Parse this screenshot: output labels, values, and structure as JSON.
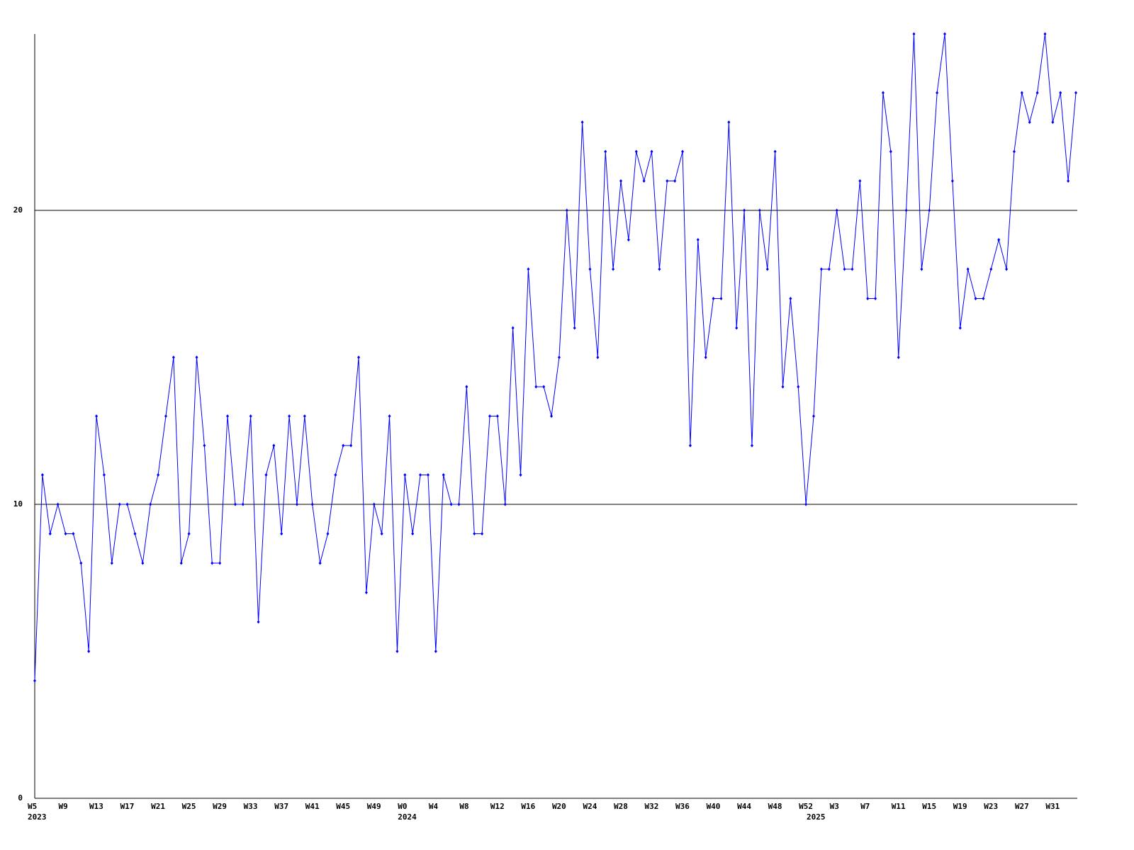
{
  "chart_data": {
    "type": "line",
    "categories": [
      "W5",
      null,
      null,
      null,
      "W9",
      null,
      null,
      null,
      "W13",
      null,
      null,
      null,
      "W17",
      null,
      null,
      null,
      "W21",
      null,
      null,
      null,
      "W25",
      null,
      null,
      null,
      "W29",
      null,
      null,
      null,
      "W33",
      null,
      null,
      null,
      "W37",
      null,
      null,
      null,
      "W41",
      null,
      null,
      null,
      "W45",
      null,
      null,
      null,
      "W49",
      null,
      null,
      null,
      "W0",
      null,
      null,
      null,
      "W4",
      null,
      null,
      null,
      "W8",
      null,
      null,
      null,
      "W12",
      null,
      null,
      null,
      "W16",
      null,
      null,
      null,
      "W20",
      null,
      null,
      null,
      "W24",
      null,
      null,
      null,
      "W28",
      null,
      null,
      null,
      "W32",
      null,
      null,
      null,
      "W36",
      null,
      null,
      null,
      "W40",
      null,
      null,
      null,
      "W44",
      null,
      null,
      null,
      "W48",
      null,
      null,
      null,
      "W52",
      null,
      null,
      null,
      "W3",
      null,
      null,
      null,
      "W7",
      null,
      null,
      null,
      "W11",
      null,
      null,
      null,
      "W15",
      null,
      null,
      null,
      "W19",
      null,
      null,
      null,
      "W23",
      null,
      null,
      null,
      "W27",
      null,
      null,
      null,
      "W31",
      null,
      null,
      null
    ],
    "category_years": [
      "2023",
      null,
      null,
      null,
      null,
      null,
      null,
      null,
      null,
      null,
      null,
      null,
      null,
      null,
      null,
      null,
      null,
      null,
      null,
      null,
      null,
      null,
      null,
      null,
      null,
      null,
      null,
      null,
      null,
      null,
      null,
      null,
      null,
      null,
      null,
      null,
      null,
      null,
      null,
      null,
      null,
      null,
      null,
      null,
      null,
      null,
      null,
      null,
      "2024",
      null,
      null,
      null,
      null,
      null,
      null,
      null,
      null,
      null,
      null,
      null,
      null,
      null,
      null,
      null,
      null,
      null,
      null,
      null,
      null,
      null,
      null,
      null,
      null,
      null,
      null,
      null,
      null,
      null,
      null,
      null,
      null,
      null,
      null,
      null,
      null,
      null,
      null,
      null,
      null,
      null,
      null,
      null,
      null,
      null,
      null,
      null,
      null,
      null,
      null,
      null,
      null,
      "2025",
      null,
      null,
      null,
      null,
      null,
      null,
      null,
      null,
      null,
      null,
      null,
      null,
      null,
      null,
      null,
      null,
      null,
      null,
      null,
      null,
      null,
      null,
      null,
      null,
      null,
      null,
      null,
      null,
      null,
      null,
      null,
      null,
      null,
      null
    ],
    "series": [
      {
        "color": "#0000ff",
        "values": [
          4,
          11,
          9,
          10,
          9,
          9,
          8,
          5,
          13,
          11,
          8,
          10,
          10,
          9,
          8,
          10,
          11,
          13,
          15,
          8,
          9,
          15,
          12,
          8,
          8,
          13,
          10,
          10,
          13,
          6,
          11,
          12,
          9,
          13,
          10,
          13,
          10,
          8,
          9,
          11,
          12,
          12,
          15,
          7,
          10,
          9,
          13,
          5,
          11,
          9,
          11,
          11,
          5,
          11,
          10,
          10,
          14,
          9,
          9,
          13,
          13,
          10,
          16,
          11,
          18,
          14,
          14,
          13,
          15,
          20,
          16,
          23,
          18,
          15,
          22,
          18,
          21,
          19,
          22,
          21,
          22,
          18,
          21,
          21,
          22,
          12,
          19,
          15,
          17,
          17,
          23,
          16,
          20,
          12,
          20,
          18,
          22,
          14,
          17,
          14,
          10,
          13,
          18,
          18,
          20,
          18,
          18,
          21,
          17,
          17,
          24,
          22,
          15,
          20,
          26,
          18,
          20,
          24,
          26,
          21,
          16,
          18,
          17,
          17,
          18,
          19,
          18,
          22,
          24,
          23,
          24,
          26,
          23,
          24,
          21,
          24
        ]
      }
    ],
    "ylim": [
      0,
      26
    ],
    "yticks": [
      0,
      10,
      20
    ],
    "grid": true
  }
}
